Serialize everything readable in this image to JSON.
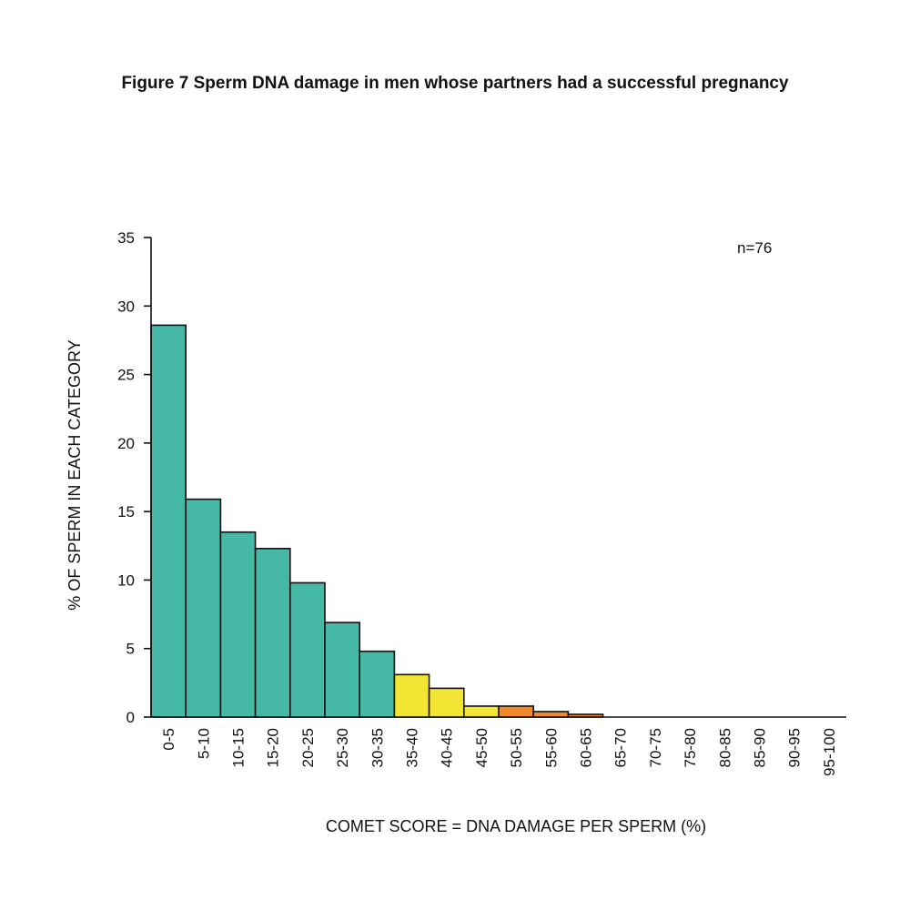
{
  "chart_data": {
    "type": "bar",
    "title": "Figure 7 Sperm DNA damage in men whose partners had a successful pregnancy",
    "xlabel": "COMET SCORE = DNA DAMAGE PER SPERM (%)",
    "ylabel": "% OF SPERM IN EACH CATEGORY",
    "annotation": "n=76",
    "ylim": [
      0,
      35
    ],
    "yticks": [
      0,
      5,
      10,
      15,
      20,
      25,
      30,
      35
    ],
    "categories": [
      "0-5",
      "5-10",
      "10-15",
      "15-20",
      "20-25",
      "25-30",
      "30-35",
      "35-40",
      "40-45",
      "45-50",
      "50-55",
      "55-60",
      "60-65",
      "65-70",
      "70-75",
      "75-80",
      "80-85",
      "85-90",
      "90-95",
      "95-100"
    ],
    "values": [
      28.6,
      15.9,
      13.5,
      12.3,
      9.8,
      6.9,
      4.8,
      3.1,
      2.1,
      0.8,
      0.8,
      0.4,
      0.2,
      0,
      0,
      0,
      0,
      0,
      0,
      0
    ],
    "bar_colors": [
      "#45b8a6",
      "#45b8a6",
      "#45b8a6",
      "#45b8a6",
      "#45b8a6",
      "#45b8a6",
      "#45b8a6",
      "#f2e533",
      "#f2e533",
      "#f2e533",
      "#f0892b",
      "#f0892b",
      "#f0892b",
      "#45b8a6",
      "#45b8a6",
      "#45b8a6",
      "#45b8a6",
      "#45b8a6",
      "#45b8a6",
      "#45b8a6"
    ],
    "legend": "none",
    "grid": false
  }
}
